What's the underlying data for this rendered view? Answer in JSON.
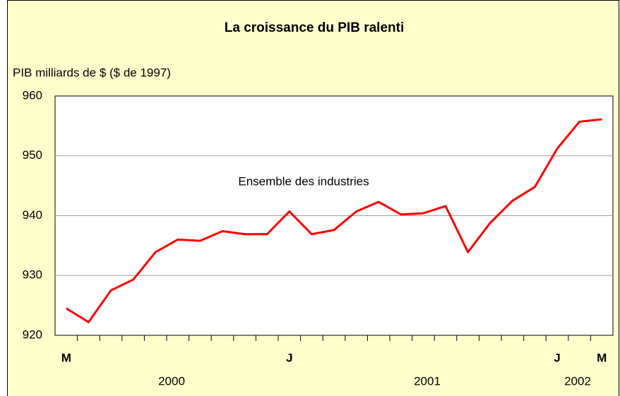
{
  "chart_data": {
    "type": "line",
    "title": "La croissance du PIB ralenti",
    "y_axis_label": "PIB milliards de $ ($ de 1997)",
    "annotation": "Ensemble des industries",
    "categories": [
      "M",
      null,
      null,
      null,
      null,
      null,
      null,
      null,
      null,
      null,
      "J",
      null,
      null,
      null,
      null,
      null,
      null,
      null,
      null,
      null,
      null,
      null,
      "J",
      null,
      "M"
    ],
    "years": [
      "2000",
      "2001",
      "2002"
    ],
    "series": [
      {
        "name": "Ensemble des industries",
        "color": "#ff0000",
        "values": [
          924.5,
          922.2,
          927.5,
          929.3,
          933.9,
          936.0,
          935.8,
          937.4,
          936.9,
          936.9,
          940.7,
          936.9,
          937.6,
          940.7,
          942.3,
          940.2,
          940.4,
          941.6,
          933.9,
          938.8,
          942.5,
          944.8,
          951.2,
          955.7,
          956.1
        ]
      }
    ],
    "ylim": [
      920,
      960
    ],
    "yticks": [
      920,
      930,
      940,
      950,
      960
    ],
    "grid": true
  }
}
